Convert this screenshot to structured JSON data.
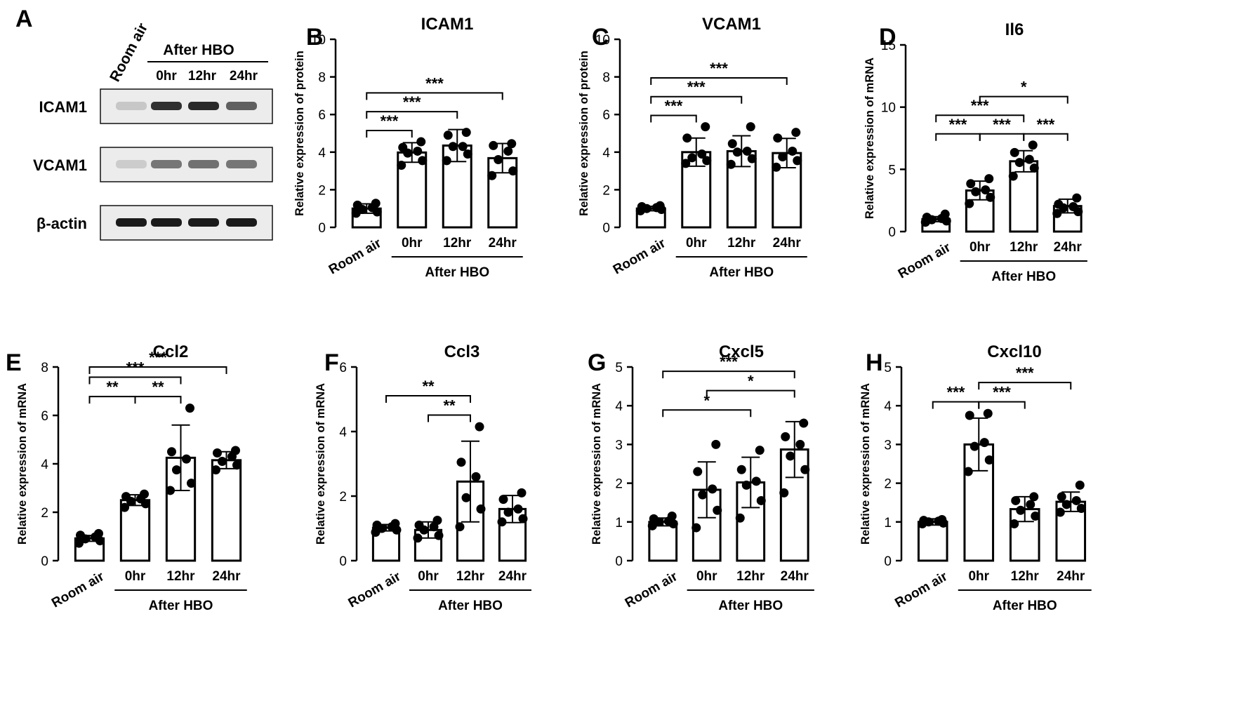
{
  "figure": {
    "western_blot": {
      "panel_letter": "A",
      "lane_labels": [
        "Room air",
        "0hr",
        "12hr",
        "24hr"
      ],
      "group_label": "After HBO",
      "rows": [
        {
          "label": "ICAM1",
          "intensities": [
            0.12,
            0.82,
            0.85,
            0.6
          ]
        },
        {
          "label": "VCAM1",
          "intensities": [
            0.1,
            0.5,
            0.52,
            0.5
          ]
        },
        {
          "label": "β-actin",
          "intensities": [
            0.92,
            0.92,
            0.92,
            0.92
          ]
        }
      ]
    }
  },
  "chart_data": [
    {
      "panel": "B",
      "type": "bar",
      "title": "ICAM1",
      "ylabel": "Relative expression of  protein",
      "xlabel": "After HBO",
      "categories": [
        "Room air",
        "0hr",
        "12hr",
        "24hr"
      ],
      "values": [
        1.0,
        3.98,
        4.35,
        3.68
      ],
      "sd": [
        0.25,
        0.52,
        0.85,
        0.78
      ],
      "points": [
        [
          0.75,
          0.82,
          0.95,
          1.05,
          1.18,
          1.28
        ],
        [
          3.3,
          3.55,
          3.95,
          4.05,
          4.25,
          4.55
        ],
        [
          3.55,
          3.9,
          4.3,
          4.3,
          4.9,
          5.05
        ],
        [
          2.75,
          3.0,
          3.6,
          4.05,
          4.35,
          4.45
        ]
      ],
      "ylim": [
        0,
        10
      ],
      "yticks": [
        0,
        2,
        4,
        6,
        8,
        10
      ],
      "significance": [
        {
          "from": 0,
          "to": 1,
          "label": "***"
        },
        {
          "from": 0,
          "to": 2,
          "label": "***"
        },
        {
          "from": 0,
          "to": 3,
          "label": "***"
        }
      ]
    },
    {
      "panel": "C",
      "type": "bar",
      "title": "VCAM1",
      "ylabel": "Relative expression of  protein",
      "xlabel": "After HBO",
      "categories": [
        "Room air",
        "0hr",
        "12hr",
        "24hr"
      ],
      "values": [
        1.0,
        4.0,
        4.05,
        3.95
      ],
      "sd": [
        0.12,
        0.75,
        0.82,
        0.78
      ],
      "points": [
        [
          0.88,
          0.95,
          1.0,
          1.05,
          1.1,
          1.15
        ],
        [
          3.4,
          3.55,
          3.7,
          3.9,
          4.75,
          5.35
        ],
        [
          3.35,
          3.65,
          4.0,
          4.05,
          4.45,
          5.35
        ],
        [
          3.2,
          3.55,
          3.75,
          4.05,
          4.75,
          5.05
        ]
      ],
      "ylim": [
        0,
        10
      ],
      "yticks": [
        0,
        2,
        4,
        6,
        8,
        10
      ],
      "significance": [
        {
          "from": 0,
          "to": 1,
          "label": "***"
        },
        {
          "from": 0,
          "to": 2,
          "label": "***"
        },
        {
          "from": 0,
          "to": 3,
          "label": "***"
        }
      ]
    },
    {
      "panel": "D",
      "type": "bar",
      "title": "Il6",
      "ylabel": "Relative expression of  mRNA",
      "xlabel": "After HBO",
      "categories": [
        "Room air",
        "0hr",
        "12hr",
        "24hr"
      ],
      "values": [
        1.0,
        3.3,
        5.65,
        2.05
      ],
      "sd": [
        0.2,
        0.75,
        0.85,
        0.55
      ],
      "points": [
        [
          0.75,
          0.85,
          0.95,
          1.05,
          1.15,
          1.4
        ],
        [
          2.25,
          2.75,
          3.2,
          3.35,
          3.85,
          4.25
        ],
        [
          4.45,
          5.1,
          5.55,
          5.8,
          6.35,
          6.95
        ],
        [
          1.45,
          1.6,
          1.9,
          2.0,
          2.2,
          2.7
        ]
      ],
      "ylim": [
        0,
        15
      ],
      "yticks": [
        0,
        5,
        10,
        15
      ],
      "significance": [
        {
          "from": 0,
          "to": 1,
          "label": "***"
        },
        {
          "from": 1,
          "to": 2,
          "label": "***"
        },
        {
          "from": 2,
          "to": 3,
          "label": "***"
        },
        {
          "from": 0,
          "to": 2,
          "label": "***"
        },
        {
          "from": 1,
          "to": 3,
          "label": "*"
        }
      ]
    },
    {
      "panel": "E",
      "type": "bar",
      "title": "Ccl2",
      "ylabel": "Relative expression of  mRNA",
      "xlabel": "After HBO",
      "categories": [
        "Room air",
        "0hr",
        "12hr",
        "24hr"
      ],
      "values": [
        0.92,
        2.5,
        4.25,
        4.15
      ],
      "sd": [
        0.12,
        0.22,
        1.35,
        0.35
      ],
      "points": [
        [
          0.72,
          0.82,
          0.9,
          0.98,
          1.05,
          1.12
        ],
        [
          2.2,
          2.35,
          2.45,
          2.55,
          2.65,
          2.75
        ],
        [
          2.9,
          3.2,
          3.75,
          4.2,
          4.5,
          6.3
        ],
        [
          3.75,
          3.95,
          4.1,
          4.3,
          4.45,
          4.55
        ]
      ],
      "ylim": [
        0,
        8
      ],
      "yticks": [
        0,
        2,
        4,
        6,
        8
      ],
      "significance": [
        {
          "from": 0,
          "to": 1,
          "label": "**"
        },
        {
          "from": 1,
          "to": 2,
          "label": "**"
        },
        {
          "from": 0,
          "to": 2,
          "label": "***"
        },
        {
          "from": 0,
          "to": 3,
          "label": "***"
        }
      ]
    },
    {
      "panel": "F",
      "type": "bar",
      "title": "Ccl3",
      "ylabel": "Relative expression of  mRNA",
      "xlabel": "After HBO",
      "categories": [
        "Room air",
        "0hr",
        "12hr",
        "24hr"
      ],
      "values": [
        1.02,
        0.95,
        2.45,
        1.6
      ],
      "sd": [
        0.1,
        0.25,
        1.25,
        0.42
      ],
      "points": [
        [
          0.88,
          0.95,
          1.0,
          1.05,
          1.1,
          1.15
        ],
        [
          0.7,
          0.78,
          0.95,
          1.05,
          1.1,
          1.25
        ],
        [
          1.05,
          1.6,
          1.95,
          2.6,
          3.05,
          4.15
        ],
        [
          1.2,
          1.3,
          1.5,
          1.6,
          1.9,
          2.1
        ]
      ],
      "ylim": [
        0,
        6
      ],
      "yticks": [
        0,
        2,
        4,
        6
      ],
      "significance": [
        {
          "from": 1,
          "to": 2,
          "label": "**"
        },
        {
          "from": 0,
          "to": 2,
          "label": "**"
        }
      ]
    },
    {
      "panel": "G",
      "type": "bar",
      "title": "Cxcl5",
      "ylabel": "Relative expression of  mRNA",
      "xlabel": "After HBO",
      "categories": [
        "Room air",
        "0hr",
        "12hr",
        "24hr"
      ],
      "values": [
        1.0,
        1.83,
        2.02,
        2.87
      ],
      "sd": [
        0.1,
        0.72,
        0.65,
        0.72
      ],
      "points": [
        [
          0.9,
          0.95,
          1.0,
          1.02,
          1.08,
          1.15
        ],
        [
          0.85,
          1.3,
          1.7,
          1.85,
          2.3,
          3.0
        ],
        [
          1.1,
          1.55,
          1.95,
          2.05,
          2.35,
          2.85
        ],
        [
          1.75,
          2.35,
          2.7,
          3.0,
          3.2,
          3.55
        ]
      ],
      "ylim": [
        0,
        5
      ],
      "yticks": [
        0,
        1,
        2,
        3,
        4,
        5
      ],
      "significance": [
        {
          "from": 0,
          "to": 2,
          "label": "*"
        },
        {
          "from": 1,
          "to": 3,
          "label": "*"
        },
        {
          "from": 0,
          "to": 3,
          "label": "***"
        }
      ]
    },
    {
      "panel": "H",
      "type": "bar",
      "title": "Cxcl10",
      "ylabel": "Relative expression of  mRNA",
      "xlabel": "After HBO",
      "categories": [
        "Room air",
        "0hr",
        "12hr",
        "24hr"
      ],
      "values": [
        1.0,
        3.0,
        1.33,
        1.52
      ],
      "sd": [
        0.08,
        0.68,
        0.32,
        0.25
      ],
      "points": [
        [
          0.95,
          0.97,
          1.0,
          1.02,
          1.04,
          1.06
        ],
        [
          2.3,
          2.6,
          2.95,
          3.05,
          3.75,
          3.8
        ],
        [
          0.95,
          1.15,
          1.3,
          1.45,
          1.55,
          1.65
        ],
        [
          1.25,
          1.35,
          1.45,
          1.55,
          1.65,
          1.95
        ]
      ],
      "ylim": [
        0,
        5
      ],
      "yticks": [
        0,
        1,
        2,
        3,
        4,
        5
      ],
      "significance": [
        {
          "from": 0,
          "to": 1,
          "label": "***"
        },
        {
          "from": 1,
          "to": 2,
          "label": "***"
        },
        {
          "from": 1,
          "to": 3,
          "label": "***"
        }
      ]
    }
  ]
}
